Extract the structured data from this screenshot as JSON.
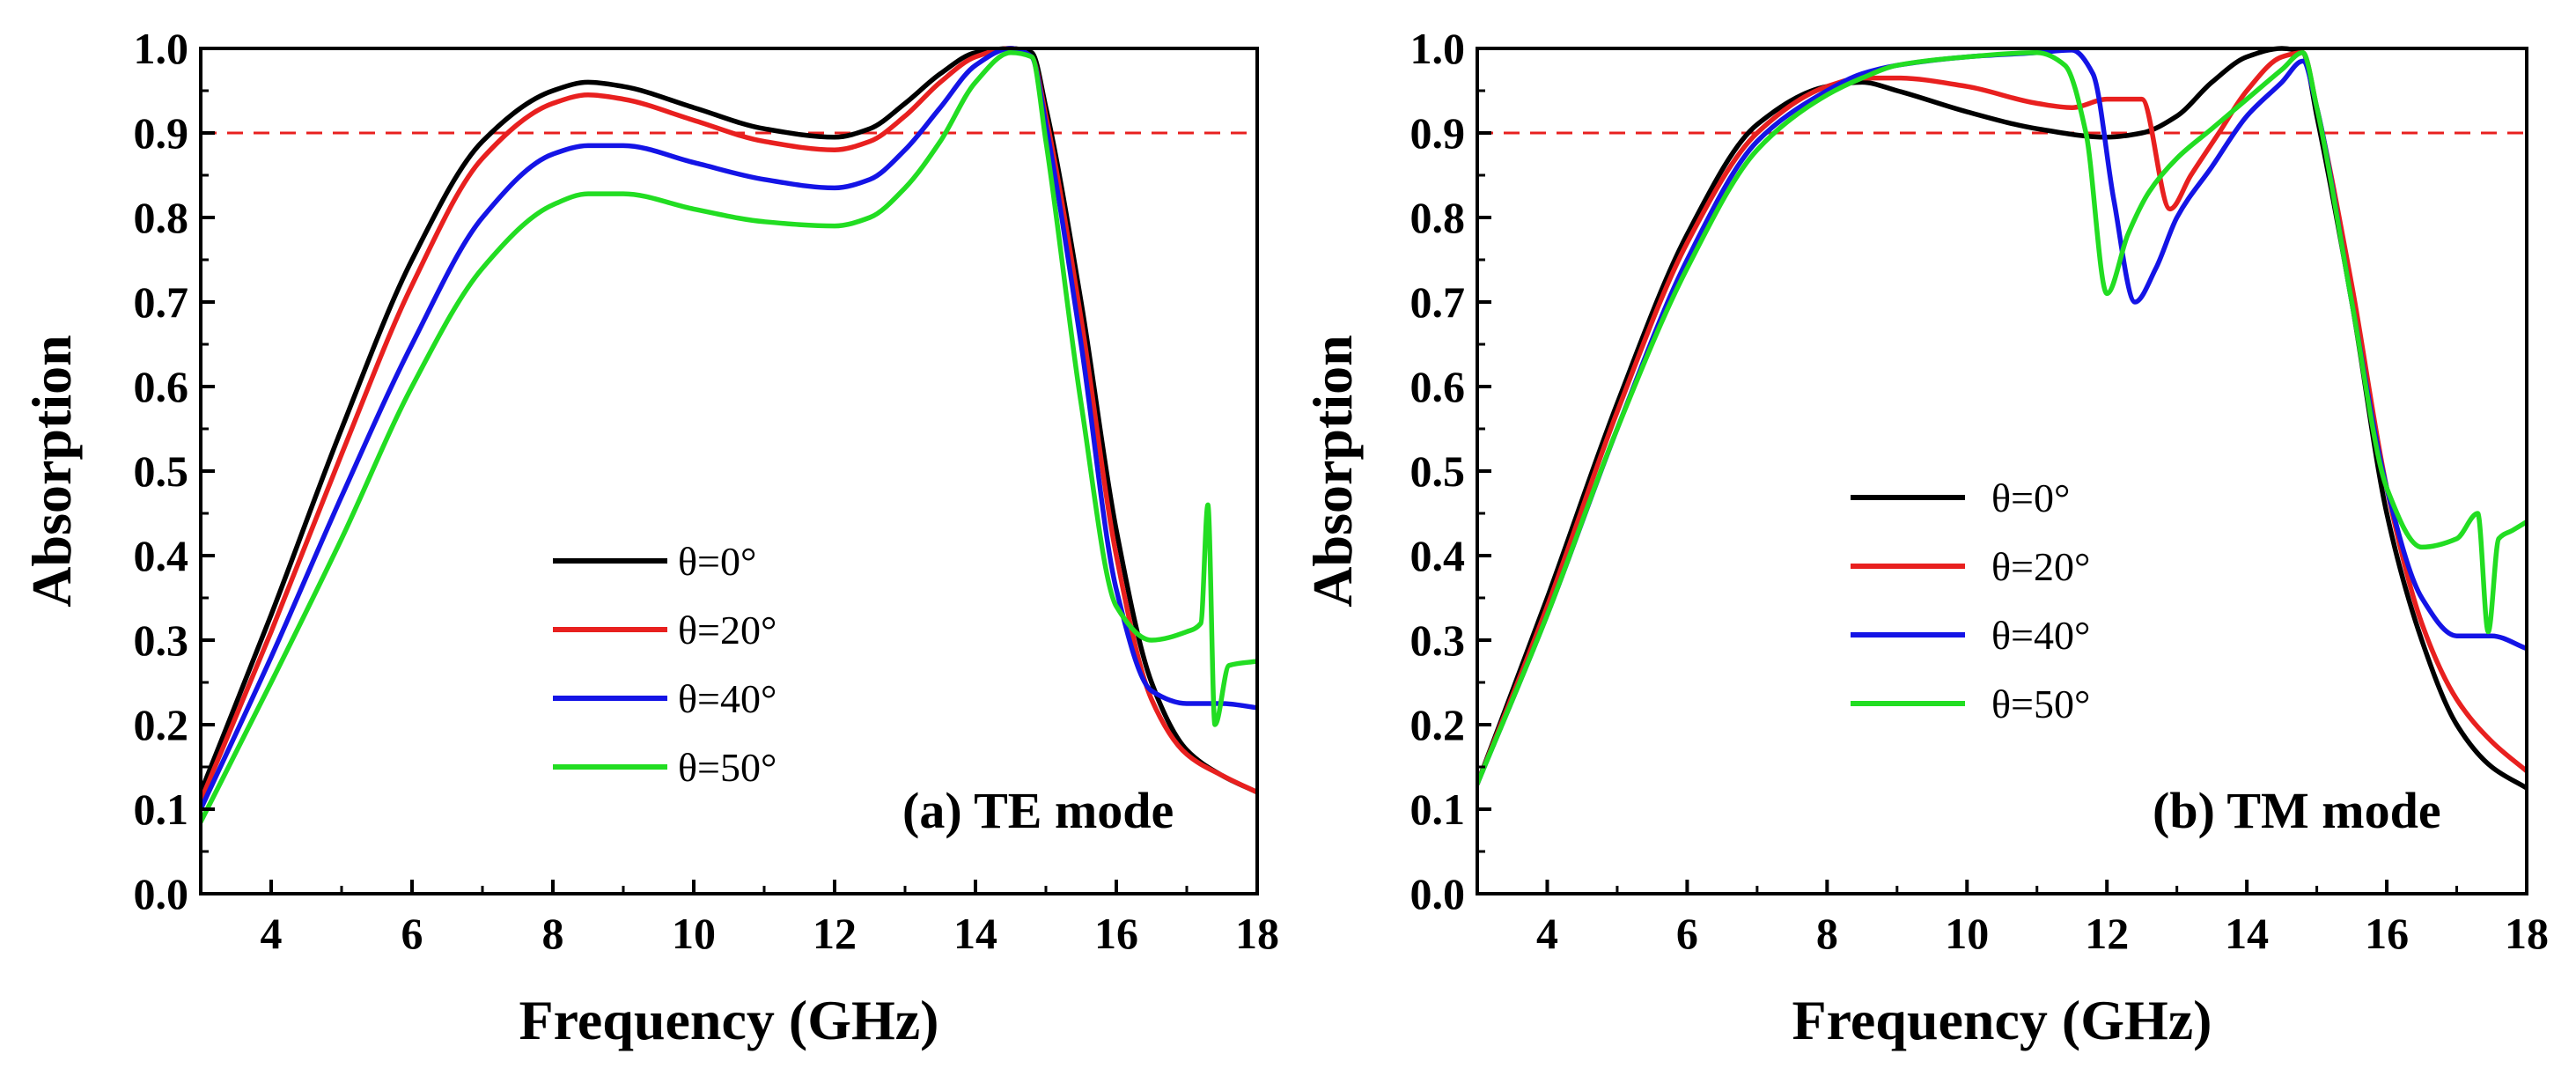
{
  "chart_data": [
    {
      "type": "line",
      "panel": "a",
      "title": "",
      "annotation": "(a) TE mode",
      "xlabel": "Frequency (GHz)",
      "ylabel": "Absorption",
      "xlim": [
        3,
        18
      ],
      "ylim": [
        0,
        1
      ],
      "xticks": [
        "4",
        "6",
        "8",
        "10",
        "12",
        "14",
        "16",
        "18"
      ],
      "yticks": [
        "0.0",
        "0.1",
        "0.2",
        "0.3",
        "0.4",
        "0.5",
        "0.6",
        "0.7",
        "0.8",
        "0.9",
        "1.0"
      ],
      "reference_line": {
        "y": 0.9,
        "color": "#e8201f",
        "style": "dashed"
      },
      "legend_position": "center",
      "series": [
        {
          "name": "θ=0°",
          "color": "#000000",
          "x": [
            3,
            4,
            5,
            6,
            7,
            8,
            8.5,
            9,
            10,
            11,
            12,
            12.5,
            13,
            13.5,
            14,
            14.5,
            14.8,
            15,
            15.5,
            16,
            16.5,
            17,
            17.5,
            18
          ],
          "y": [
            0.12,
            0.33,
            0.55,
            0.75,
            0.89,
            0.95,
            0.96,
            0.955,
            0.93,
            0.905,
            0.895,
            0.905,
            0.935,
            0.97,
            0.995,
            1.0,
            0.995,
            0.93,
            0.7,
            0.43,
            0.25,
            0.17,
            0.14,
            0.12
          ]
        },
        {
          "name": "θ=20°",
          "color": "#e8201f",
          "x": [
            3,
            4,
            5,
            6,
            7,
            8,
            8.5,
            9,
            10,
            11,
            12,
            12.5,
            13,
            13.5,
            14,
            14.5,
            14.8,
            15,
            15.5,
            16,
            16.5,
            17,
            17.5,
            18
          ],
          "y": [
            0.11,
            0.31,
            0.52,
            0.72,
            0.87,
            0.935,
            0.945,
            0.94,
            0.915,
            0.89,
            0.88,
            0.89,
            0.92,
            0.96,
            0.99,
            1.0,
            0.99,
            0.92,
            0.68,
            0.4,
            0.23,
            0.165,
            0.14,
            0.12
          ]
        },
        {
          "name": "θ=40°",
          "color": "#1414e6",
          "x": [
            3,
            4,
            5,
            6,
            7,
            8,
            8.5,
            9,
            10,
            11,
            12,
            12.5,
            13,
            13.5,
            14,
            14.5,
            14.8,
            15,
            15.5,
            16,
            16.5,
            17,
            17.5,
            18
          ],
          "y": [
            0.1,
            0.28,
            0.47,
            0.65,
            0.8,
            0.875,
            0.885,
            0.885,
            0.865,
            0.845,
            0.835,
            0.845,
            0.88,
            0.93,
            0.98,
            1.0,
            0.99,
            0.91,
            0.65,
            0.36,
            0.24,
            0.225,
            0.225,
            0.22
          ]
        },
        {
          "name": "θ=50°",
          "color": "#22dd22",
          "x": [
            3,
            4,
            5,
            6,
            7,
            8,
            8.5,
            9,
            10,
            11,
            12,
            12.5,
            13,
            13.5,
            14,
            14.5,
            14.8,
            15,
            15.5,
            16,
            16.5,
            17,
            17.2,
            17.3,
            17.4,
            17.6,
            18
          ],
          "y": [
            0.085,
            0.25,
            0.42,
            0.6,
            0.74,
            0.815,
            0.828,
            0.828,
            0.81,
            0.795,
            0.79,
            0.8,
            0.835,
            0.89,
            0.96,
            0.995,
            0.99,
            0.89,
            0.58,
            0.34,
            0.3,
            0.31,
            0.32,
            0.46,
            0.2,
            0.27,
            0.275
          ]
        }
      ]
    },
    {
      "type": "line",
      "panel": "b",
      "title": "",
      "annotation": "(b) TM mode",
      "xlabel": "Frequency (GHz)",
      "ylabel": "Absorption",
      "xlim": [
        3,
        18
      ],
      "ylim": [
        0,
        1
      ],
      "xticks": [
        "4",
        "6",
        "8",
        "10",
        "12",
        "14",
        "16",
        "18"
      ],
      "yticks": [
        "0.0",
        "0.1",
        "0.2",
        "0.3",
        "0.4",
        "0.5",
        "0.6",
        "0.7",
        "0.8",
        "0.9",
        "1.0"
      ],
      "reference_line": {
        "y": 0.9,
        "color": "#e8201f",
        "style": "dashed"
      },
      "legend_position": "center",
      "series": [
        {
          "name": "θ=0°",
          "color": "#000000",
          "x": [
            3,
            4,
            5,
            6,
            7,
            8,
            8.5,
            9,
            10,
            11,
            12,
            12.5,
            13,
            13.5,
            14,
            14.5,
            14.8,
            15,
            15.5,
            16,
            16.5,
            17,
            17.5,
            18
          ],
          "y": [
            0.13,
            0.35,
            0.58,
            0.78,
            0.91,
            0.955,
            0.96,
            0.95,
            0.925,
            0.905,
            0.895,
            0.9,
            0.92,
            0.96,
            0.99,
            1.0,
            0.995,
            0.92,
            0.7,
            0.45,
            0.3,
            0.2,
            0.15,
            0.125
          ]
        },
        {
          "name": "θ=20°",
          "color": "#e8201f",
          "x": [
            3,
            4,
            5,
            6,
            7,
            8,
            8.5,
            9,
            10,
            11,
            11.5,
            12,
            12.5,
            12.9,
            13.2,
            13.6,
            14,
            14.5,
            14.8,
            15,
            15.5,
            16,
            16.5,
            17,
            17.5,
            18
          ],
          "y": [
            0.13,
            0.34,
            0.57,
            0.77,
            0.9,
            0.955,
            0.965,
            0.965,
            0.955,
            0.935,
            0.93,
            0.94,
            0.94,
            0.81,
            0.85,
            0.9,
            0.95,
            0.99,
            0.995,
            0.93,
            0.72,
            0.48,
            0.32,
            0.23,
            0.18,
            0.145
          ]
        },
        {
          "name": "θ=40°",
          "color": "#1414e6",
          "x": [
            3,
            4,
            5,
            6,
            7,
            8,
            8.5,
            9,
            10,
            11,
            11.5,
            11.8,
            12.1,
            12.4,
            12.7,
            13,
            13.5,
            14,
            14.5,
            14.8,
            15,
            15.5,
            16,
            16.5,
            17,
            17.5,
            18
          ],
          "y": [
            0.13,
            0.33,
            0.55,
            0.75,
            0.89,
            0.95,
            0.97,
            0.98,
            0.99,
            0.995,
            0.998,
            0.97,
            0.82,
            0.7,
            0.74,
            0.8,
            0.86,
            0.92,
            0.96,
            0.985,
            0.93,
            0.7,
            0.48,
            0.35,
            0.305,
            0.305,
            0.29
          ]
        },
        {
          "name": "θ=50°",
          "color": "#22dd22",
          "x": [
            3,
            4,
            5,
            6,
            7,
            8,
            8.5,
            9,
            10,
            11,
            11.4,
            11.7,
            12,
            12.3,
            12.6,
            13,
            13.5,
            14,
            14.5,
            14.8,
            15,
            15.5,
            16,
            16.5,
            17,
            17.3,
            17.45,
            17.6,
            17.8,
            18
          ],
          "y": [
            0.13,
            0.33,
            0.55,
            0.74,
            0.88,
            0.945,
            0.965,
            0.98,
            0.99,
            0.995,
            0.98,
            0.9,
            0.71,
            0.78,
            0.83,
            0.87,
            0.905,
            0.94,
            0.975,
            0.995,
            0.93,
            0.7,
            0.48,
            0.41,
            0.42,
            0.45,
            0.31,
            0.42,
            0.43,
            0.44
          ]
        }
      ]
    }
  ]
}
